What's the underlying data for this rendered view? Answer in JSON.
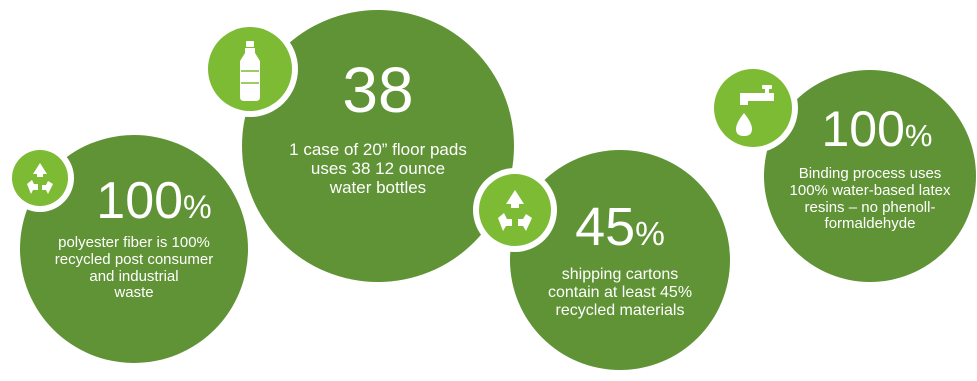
{
  "stats": [
    {
      "value": "100",
      "suffix": "%",
      "lines": [
        "polyester fiber is 100%",
        "recycled post consumer",
        "and industrial",
        "waste"
      ],
      "icon": "recycle-icon"
    },
    {
      "value": "38",
      "suffix": "",
      "lines": [
        "1 case of 20” floor pads",
        "uses 38 12 ounce",
        "water bottles"
      ],
      "icon": "water-bottle-icon"
    },
    {
      "value": "45",
      "suffix": "%",
      "lines": [
        "shipping cartons",
        "contain at least 45%",
        "recycled materials"
      ],
      "icon": "recycle-icon"
    },
    {
      "value": "100",
      "suffix": "%",
      "lines": [
        "Binding process uses",
        "100% water-based latex",
        "resins – no phenoll-",
        "formaldehyde"
      ],
      "icon": "faucet-drop-icon"
    }
  ],
  "colors": {
    "circle": "#5f9335",
    "badge": "#7dbb34",
    "text": "#ffffff"
  }
}
